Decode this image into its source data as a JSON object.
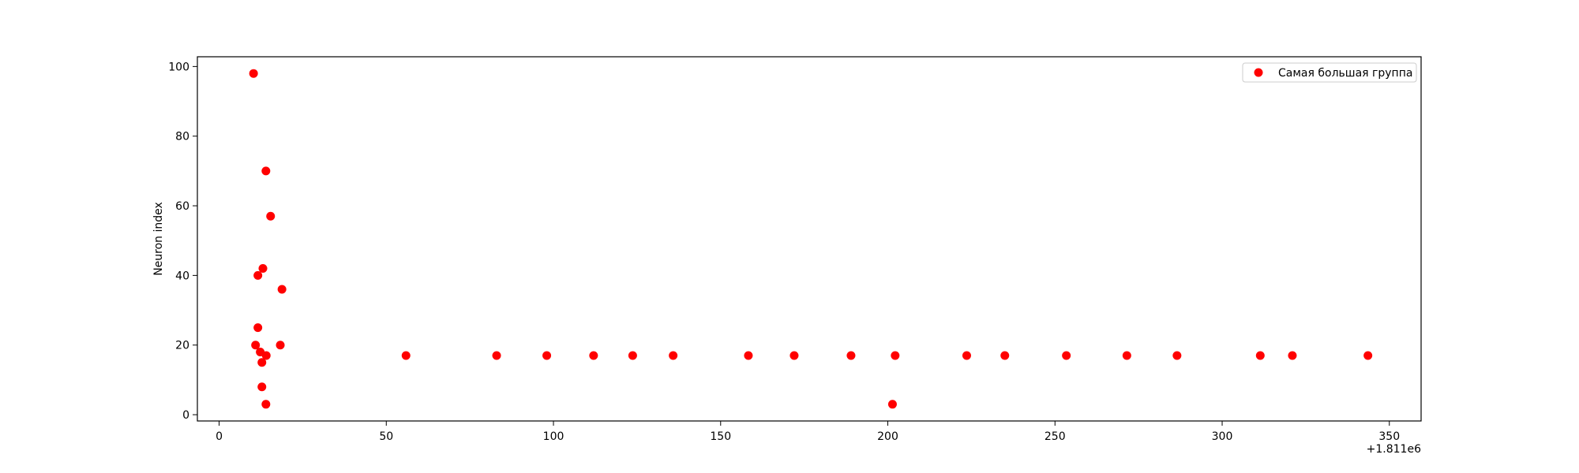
{
  "chart_data": {
    "type": "scatter",
    "title": "",
    "xlabel": "",
    "ylabel": "Neuron index",
    "x_offset_label": "+1.811e6",
    "xlim": [
      -6.5,
      359.5
    ],
    "ylim": [
      -1.8,
      102.8
    ],
    "xticks": [
      0,
      50,
      100,
      150,
      200,
      250,
      300,
      350
    ],
    "yticks": [
      0,
      20,
      40,
      60,
      80,
      100
    ],
    "grid": false,
    "legend_position": "top-right",
    "color": "#ff0000",
    "series": [
      {
        "name": "Самая большая группа",
        "points": [
          [
            10.3,
            98
          ],
          [
            14,
            70
          ],
          [
            15.4,
            57
          ],
          [
            13.1,
            42
          ],
          [
            11.6,
            40
          ],
          [
            18.8,
            36
          ],
          [
            11.6,
            25
          ],
          [
            10.9,
            20
          ],
          [
            18.3,
            20
          ],
          [
            12.3,
            18
          ],
          [
            14.1,
            17
          ],
          [
            12.8,
            15
          ],
          [
            12.8,
            8
          ],
          [
            14,
            3
          ],
          [
            55.9,
            17
          ],
          [
            83,
            17
          ],
          [
            98,
            17
          ],
          [
            112,
            17
          ],
          [
            123.7,
            17
          ],
          [
            135.8,
            17
          ],
          [
            158.3,
            17
          ],
          [
            172,
            17
          ],
          [
            189,
            17
          ],
          [
            202.2,
            17
          ],
          [
            201.4,
            3
          ],
          [
            223.6,
            17
          ],
          [
            235,
            17
          ],
          [
            253.4,
            17
          ],
          [
            271.5,
            17
          ],
          [
            286.5,
            17
          ],
          [
            311.4,
            17
          ],
          [
            321,
            17
          ],
          [
            343.6,
            17
          ]
        ]
      }
    ]
  }
}
